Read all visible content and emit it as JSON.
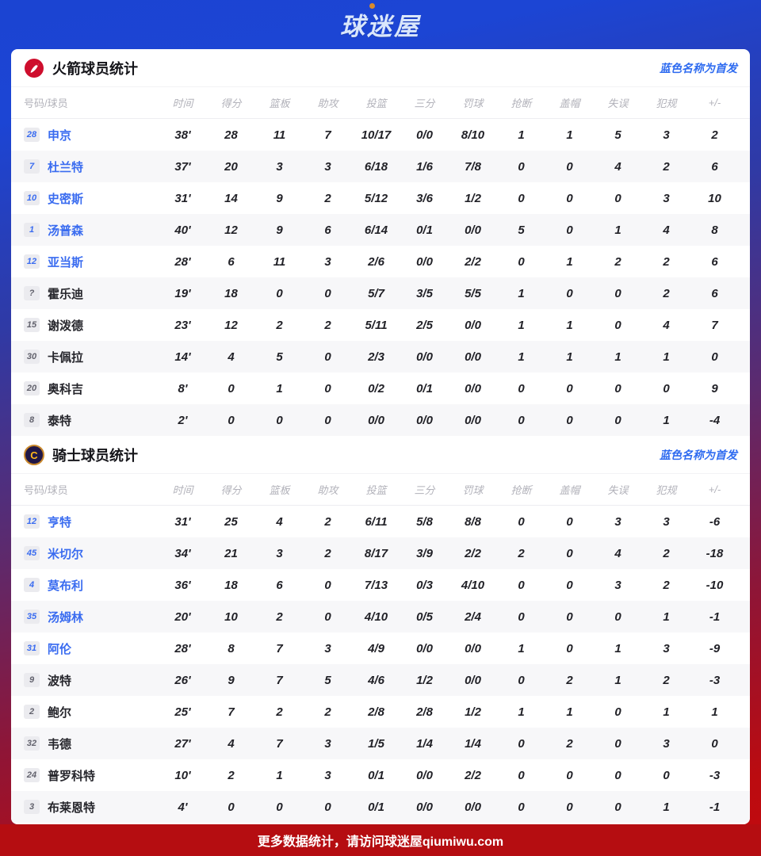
{
  "brand": {
    "logo_text": "球迷屋"
  },
  "footer": {
    "text": "更多数据统计，请访问球迷屋qiumiwu.com"
  },
  "colors": {
    "header_blue": "#1b44d2",
    "footer_red": "#b50d11",
    "starter_blue": "#3a6cf0",
    "legend_blue": "#2e6bf0",
    "rockets_red": "#ce0e2d",
    "cavs_navy": "#201747",
    "cavs_gold": "#ffb81c"
  },
  "table_columns": [
    "号码/球员",
    "时间",
    "得分",
    "篮板",
    "助攻",
    "投篮",
    "三分",
    "罚球",
    "抢断",
    "盖帽",
    "失误",
    "犯规",
    "+/-"
  ],
  "sections": [
    {
      "id": "rockets",
      "title": "火箭球员统计",
      "legend": "蓝色名称为首发",
      "players": [
        {
          "num": "28",
          "name": "申京",
          "starter": true,
          "stats": [
            "38'",
            "28",
            "11",
            "7",
            "10/17",
            "0/0",
            "8/10",
            "1",
            "1",
            "5",
            "3",
            "2"
          ]
        },
        {
          "num": "7",
          "name": "杜兰特",
          "starter": true,
          "stats": [
            "37'",
            "20",
            "3",
            "3",
            "6/18",
            "1/6",
            "7/8",
            "0",
            "0",
            "4",
            "2",
            "6"
          ]
        },
        {
          "num": "10",
          "name": "史密斯",
          "starter": true,
          "stats": [
            "31'",
            "14",
            "9",
            "2",
            "5/12",
            "3/6",
            "1/2",
            "0",
            "0",
            "0",
            "3",
            "10"
          ]
        },
        {
          "num": "1",
          "name": "汤普森",
          "starter": true,
          "stats": [
            "40'",
            "12",
            "9",
            "6",
            "6/14",
            "0/1",
            "0/0",
            "5",
            "0",
            "1",
            "4",
            "8"
          ]
        },
        {
          "num": "12",
          "name": "亚当斯",
          "starter": true,
          "stats": [
            "28'",
            "6",
            "11",
            "3",
            "2/6",
            "0/0",
            "2/2",
            "0",
            "1",
            "2",
            "2",
            "6"
          ]
        },
        {
          "num": "?",
          "name": "霍乐迪",
          "starter": false,
          "stats": [
            "19'",
            "18",
            "0",
            "0",
            "5/7",
            "3/5",
            "5/5",
            "1",
            "0",
            "0",
            "2",
            "6"
          ]
        },
        {
          "num": "15",
          "name": "谢泼德",
          "starter": false,
          "stats": [
            "23'",
            "12",
            "2",
            "2",
            "5/11",
            "2/5",
            "0/0",
            "1",
            "1",
            "0",
            "4",
            "7"
          ]
        },
        {
          "num": "30",
          "name": "卡佩拉",
          "starter": false,
          "stats": [
            "14'",
            "4",
            "5",
            "0",
            "2/3",
            "0/0",
            "0/0",
            "1",
            "1",
            "1",
            "1",
            "0"
          ]
        },
        {
          "num": "20",
          "name": "奥科吉",
          "starter": false,
          "stats": [
            "8'",
            "0",
            "1",
            "0",
            "0/2",
            "0/1",
            "0/0",
            "0",
            "0",
            "0",
            "0",
            "9"
          ]
        },
        {
          "num": "8",
          "name": "泰特",
          "starter": false,
          "stats": [
            "2'",
            "0",
            "0",
            "0",
            "0/0",
            "0/0",
            "0/0",
            "0",
            "0",
            "0",
            "1",
            "-4"
          ]
        }
      ]
    },
    {
      "id": "cavaliers",
      "title": "骑士球员统计",
      "legend": "蓝色名称为首发",
      "players": [
        {
          "num": "12",
          "name": "亨特",
          "starter": true,
          "stats": [
            "31'",
            "25",
            "4",
            "2",
            "6/11",
            "5/8",
            "8/8",
            "0",
            "0",
            "3",
            "3",
            "-6"
          ]
        },
        {
          "num": "45",
          "name": "米切尔",
          "starter": true,
          "stats": [
            "34'",
            "21",
            "3",
            "2",
            "8/17",
            "3/9",
            "2/2",
            "2",
            "0",
            "4",
            "2",
            "-18"
          ]
        },
        {
          "num": "4",
          "name": "莫布利",
          "starter": true,
          "stats": [
            "36'",
            "18",
            "6",
            "0",
            "7/13",
            "0/3",
            "4/10",
            "0",
            "0",
            "3",
            "2",
            "-10"
          ]
        },
        {
          "num": "35",
          "name": "汤姆林",
          "starter": true,
          "stats": [
            "20'",
            "10",
            "2",
            "0",
            "4/10",
            "0/5",
            "2/4",
            "0",
            "0",
            "0",
            "1",
            "-1"
          ]
        },
        {
          "num": "31",
          "name": "阿伦",
          "starter": true,
          "stats": [
            "28'",
            "8",
            "7",
            "3",
            "4/9",
            "0/0",
            "0/0",
            "1",
            "0",
            "1",
            "3",
            "-9"
          ]
        },
        {
          "num": "9",
          "name": "波特",
          "starter": false,
          "stats": [
            "26'",
            "9",
            "7",
            "5",
            "4/6",
            "1/2",
            "0/0",
            "0",
            "2",
            "1",
            "2",
            "-3"
          ]
        },
        {
          "num": "2",
          "name": "鲍尔",
          "starter": false,
          "stats": [
            "25'",
            "7",
            "2",
            "2",
            "2/8",
            "2/8",
            "1/2",
            "1",
            "1",
            "0",
            "1",
            "1"
          ]
        },
        {
          "num": "32",
          "name": "韦德",
          "starter": false,
          "stats": [
            "27'",
            "4",
            "7",
            "3",
            "1/5",
            "1/4",
            "1/4",
            "0",
            "2",
            "0",
            "3",
            "0"
          ]
        },
        {
          "num": "24",
          "name": "普罗科特",
          "starter": false,
          "stats": [
            "10'",
            "2",
            "1",
            "3",
            "0/1",
            "0/0",
            "2/2",
            "0",
            "0",
            "0",
            "0",
            "-3"
          ]
        },
        {
          "num": "3",
          "name": "布莱恩特",
          "starter": false,
          "stats": [
            "4'",
            "0",
            "0",
            "0",
            "0/1",
            "0/0",
            "0/0",
            "0",
            "0",
            "0",
            "1",
            "-1"
          ]
        }
      ]
    }
  ]
}
